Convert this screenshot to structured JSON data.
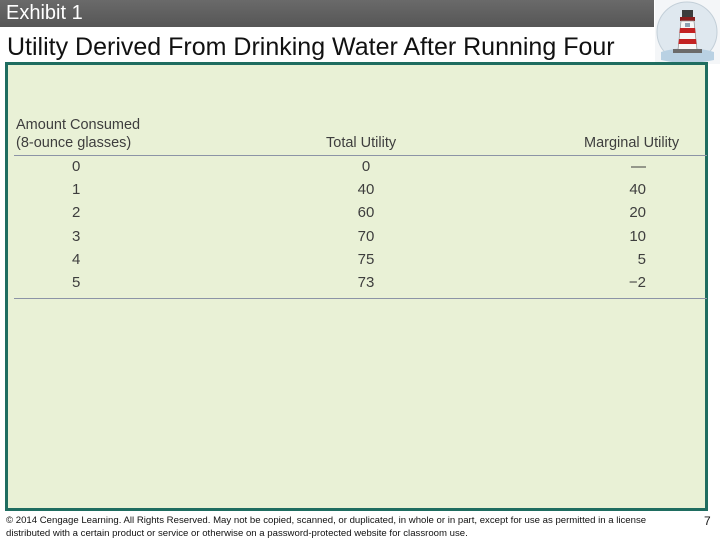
{
  "header": {
    "exhibit": "Exhibit 1"
  },
  "title": "Utility Derived From Drinking Water After Running Four Miles",
  "table": {
    "headers": {
      "amount_line1": "Amount Consumed",
      "amount_line2": "(8-ounce glasses)",
      "total": "Total Utility",
      "marginal": "Marginal Utility"
    },
    "rows": [
      {
        "amount": "0",
        "total": "0",
        "marginal": "—"
      },
      {
        "amount": "1",
        "total": "40",
        "marginal": "40"
      },
      {
        "amount": "2",
        "total": "60",
        "marginal": "20"
      },
      {
        "amount": "3",
        "total": "70",
        "marginal": "10"
      },
      {
        "amount": "4",
        "total": "75",
        "marginal": "5"
      },
      {
        "amount": "5",
        "total": "73",
        "marginal": "−2"
      }
    ]
  },
  "footer": {
    "copyright": "© 2014 Cengage Learning. All Rights Reserved. May not be copied, scanned, or duplicated, in whole or in part, except for use as permitted in a license distributed with a certain product or service or otherwise on a password-protected website for classroom use.",
    "page_number": "7"
  },
  "colors": {
    "panel_bg": "#e9f1d6",
    "panel_border": "#1f6d60",
    "header_bar": "#5f5f5f"
  }
}
